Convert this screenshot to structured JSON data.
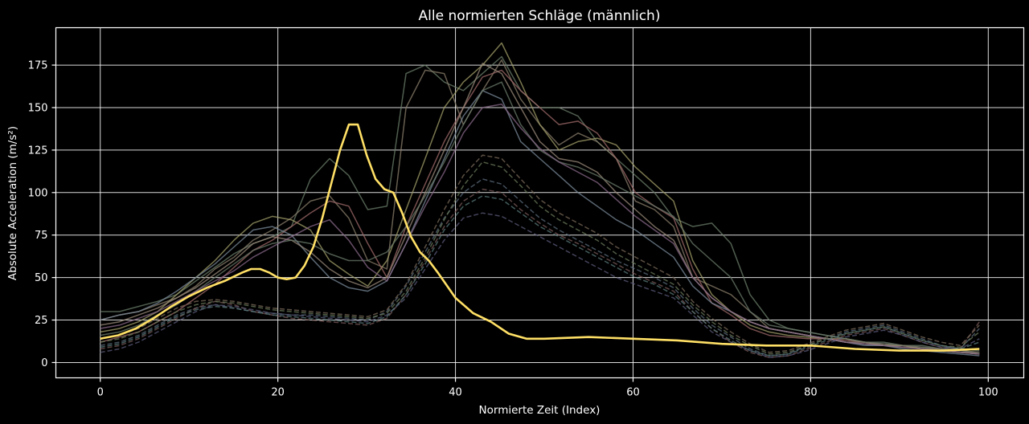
{
  "chart_data": {
    "type": "line",
    "title": "Alle normierten Schläge (männlich)",
    "xlabel": "Normierte Zeit (Index)",
    "ylabel": "Absolute Acceleration (m/s²)",
    "xlim": [
      -5,
      104
    ],
    "ylim": [
      -9,
      197
    ],
    "xticks": [
      0,
      20,
      40,
      60,
      80,
      100
    ],
    "yticks": [
      0,
      25,
      50,
      75,
      100,
      125,
      150,
      175
    ],
    "grid": true,
    "legend": "none",
    "background_color": "#000000",
    "grid_color": "#ffffff",
    "mean_color": "#ffe066",
    "mean_series": {
      "x": [
        0,
        2,
        4,
        6,
        8,
        10,
        12,
        14,
        16,
        17,
        18,
        19,
        20,
        21,
        22,
        23,
        24,
        25,
        26,
        27,
        28,
        29,
        30,
        31,
        32,
        33,
        34,
        35,
        36,
        37,
        38,
        40,
        42,
        44,
        46,
        48,
        50,
        55,
        60,
        65,
        70,
        75,
        80,
        85,
        90,
        95,
        99
      ],
      "y": [
        14,
        16,
        20,
        26,
        33,
        39,
        44,
        48,
        53,
        55,
        55,
        53,
        50,
        49,
        50,
        57,
        68,
        85,
        105,
        125,
        140,
        140,
        122,
        108,
        102,
        100,
        88,
        74,
        65,
        60,
        53,
        38,
        29,
        24,
        17,
        14,
        14,
        15,
        14,
        13,
        11,
        10,
        10,
        8,
        7,
        7,
        8
      ]
    },
    "series": [
      {
        "style": "solid",
        "color": "#6b7d6a",
        "y": [
          30,
          30,
          33,
          36,
          40,
          48,
          56,
          64,
          70,
          74,
          80,
          108,
          120,
          110,
          90,
          92,
          170,
          175,
          165,
          160,
          170,
          180,
          160,
          150,
          150,
          145,
          130,
          120,
          110,
          100,
          85,
          80,
          82,
          70,
          40,
          25,
          20,
          18,
          16,
          14,
          12,
          12,
          10,
          10,
          8,
          8,
          7
        ]
      },
      {
        "style": "solid",
        "color": "#8a7d6b",
        "y": [
          25,
          28,
          30,
          34,
          38,
          45,
          55,
          62,
          72,
          78,
          85,
          95,
          98,
          85,
          60,
          55,
          150,
          172,
          170,
          140,
          160,
          178,
          155,
          140,
          128,
          135,
          130,
          120,
          95,
          90,
          80,
          50,
          45,
          40,
          30,
          20,
          18,
          16,
          14,
          12,
          12,
          10,
          10,
          8,
          8,
          6,
          6
        ]
      },
      {
        "style": "solid",
        "color": "#a3a06a",
        "y": [
          18,
          20,
          24,
          30,
          40,
          50,
          60,
          72,
          82,
          86,
          84,
          78,
          60,
          52,
          45,
          60,
          90,
          120,
          150,
          165,
          175,
          188,
          165,
          140,
          125,
          130,
          132,
          128,
          115,
          105,
          95,
          60,
          40,
          30,
          22,
          18,
          16,
          15,
          14,
          14,
          12,
          10,
          10,
          8,
          7,
          6,
          5
        ]
      },
      {
        "style": "solid",
        "color": "#a06a6a",
        "y": [
          12,
          15,
          18,
          24,
          30,
          38,
          46,
          56,
          66,
          72,
          80,
          88,
          95,
          92,
          70,
          50,
          80,
          105,
          130,
          150,
          168,
          172,
          160,
          150,
          140,
          142,
          135,
          120,
          100,
          92,
          85,
          55,
          35,
          28,
          20,
          16,
          15,
          14,
          14,
          13,
          12,
          11,
          10,
          9,
          8,
          7,
          6
        ]
      },
      {
        "style": "solid",
        "color": "#7a8a9a",
        "y": [
          25,
          28,
          30,
          35,
          42,
          50,
          58,
          68,
          78,
          80,
          75,
          62,
          50,
          44,
          42,
          48,
          70,
          95,
          120,
          145,
          160,
          155,
          130,
          120,
          110,
          100,
          92,
          84,
          78,
          70,
          62,
          45,
          35,
          30,
          24,
          20,
          18,
          16,
          14,
          12,
          10,
          10,
          8,
          7,
          6,
          5,
          4
        ]
      },
      {
        "style": "solid",
        "color": "#9a8a7a",
        "y": [
          22,
          24,
          28,
          32,
          38,
          44,
          52,
          60,
          70,
          74,
          72,
          65,
          55,
          48,
          44,
          50,
          75,
          100,
          125,
          150,
          176,
          170,
          150,
          130,
          120,
          118,
          112,
          100,
          90,
          80,
          72,
          50,
          38,
          30,
          24,
          20,
          18,
          16,
          14,
          12,
          11,
          10,
          9,
          8,
          7,
          6,
          5
        ]
      },
      {
        "style": "solid",
        "color": "#6a7a6a",
        "y": [
          16,
          18,
          22,
          28,
          34,
          42,
          50,
          58,
          66,
          70,
          72,
          70,
          64,
          60,
          60,
          65,
          80,
          98,
          118,
          140,
          160,
          165,
          140,
          125,
          118,
          115,
          110,
          104,
          98,
          92,
          86,
          70,
          60,
          50,
          30,
          22,
          20,
          18,
          16,
          14,
          12,
          11,
          10,
          9,
          8,
          7,
          6
        ]
      },
      {
        "style": "solid",
        "color": "#8a6a8a",
        "y": [
          20,
          22,
          26,
          30,
          36,
          42,
          48,
          54,
          62,
          68,
          74,
          80,
          84,
          72,
          56,
          48,
          70,
          92,
          112,
          135,
          150,
          152,
          138,
          126,
          118,
          112,
          106,
          96,
          86,
          78,
          70,
          50,
          38,
          30,
          24,
          20,
          18,
          16,
          14,
          12,
          11,
          10,
          9,
          8,
          7,
          6,
          5
        ]
      },
      {
        "style": "dashed",
        "color": "#5a6a7a",
        "y": [
          10,
          12,
          16,
          22,
          28,
          32,
          34,
          32,
          30,
          29,
          28,
          28,
          27,
          26,
          25,
          30,
          45,
          65,
          85,
          100,
          108,
          105,
          95,
          85,
          78,
          72,
          66,
          60,
          55,
          50,
          44,
          32,
          22,
          15,
          8,
          4,
          5,
          10,
          14,
          18,
          20,
          22,
          18,
          14,
          10,
          8,
          20
        ]
      },
      {
        "style": "dashed",
        "color": "#7a5a5a",
        "y": [
          8,
          10,
          14,
          20,
          26,
          32,
          36,
          34,
          30,
          28,
          26,
          25,
          24,
          23,
          22,
          26,
          40,
          60,
          80,
          95,
          102,
          100,
          90,
          82,
          75,
          70,
          64,
          58,
          52,
          47,
          42,
          30,
          20,
          12,
          6,
          3,
          4,
          8,
          12,
          16,
          18,
          20,
          16,
          12,
          9,
          8,
          24
        ]
      },
      {
        "style": "dashed",
        "color": "#6a7a5a",
        "y": [
          12,
          14,
          18,
          24,
          30,
          34,
          36,
          35,
          33,
          31,
          30,
          29,
          28,
          27,
          26,
          29,
          42,
          62,
          84,
          104,
          118,
          115,
          104,
          92,
          84,
          78,
          72,
          64,
          58,
          52,
          46,
          34,
          24,
          16,
          10,
          5,
          6,
          10,
          14,
          17,
          19,
          21,
          17,
          13,
          10,
          9,
          18
        ]
      },
      {
        "style": "dashed",
        "color": "#5a5a7a",
        "y": [
          6,
          8,
          12,
          18,
          24,
          30,
          34,
          33,
          31,
          29,
          28,
          27,
          26,
          25,
          24,
          28,
          38,
          55,
          72,
          85,
          88,
          86,
          80,
          74,
          68,
          62,
          56,
          50,
          46,
          42,
          38,
          28,
          18,
          12,
          7,
          3,
          4,
          7,
          11,
          15,
          17,
          19,
          16,
          12,
          9,
          8,
          14
        ]
      },
      {
        "style": "dashed",
        "color": "#7a6a5a",
        "y": [
          14,
          16,
          20,
          26,
          32,
          36,
          37,
          36,
          34,
          32,
          31,
          30,
          29,
          28,
          27,
          31,
          46,
          68,
          90,
          110,
          122,
          120,
          108,
          96,
          88,
          82,
          76,
          68,
          62,
          56,
          50,
          36,
          26,
          18,
          11,
          6,
          7,
          11,
          15,
          19,
          21,
          23,
          19,
          15,
          12,
          10,
          22
        ]
      },
      {
        "style": "dashed",
        "color": "#5a7a7a",
        "y": [
          9,
          11,
          15,
          21,
          27,
          31,
          33,
          32,
          30,
          28,
          27,
          26,
          25,
          24,
          23,
          27,
          40,
          58,
          78,
          92,
          98,
          96,
          88,
          80,
          74,
          68,
          62,
          56,
          50,
          46,
          40,
          30,
          20,
          13,
          7,
          4,
          5,
          9,
          13,
          17,
          19,
          21,
          17,
          13,
          10,
          8,
          12
        ]
      }
    ]
  }
}
